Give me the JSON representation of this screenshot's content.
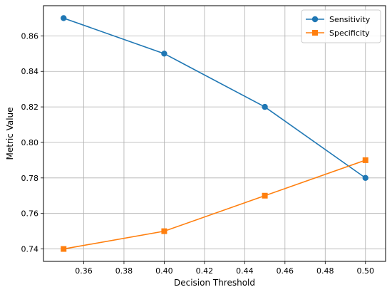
{
  "chart_data": {
    "type": "line",
    "title": "",
    "xlabel": "Decision Threshold",
    "ylabel": "Metric Value",
    "x": [
      0.35,
      0.4,
      0.45,
      0.5
    ],
    "xlim": [
      0.34,
      0.51
    ],
    "ylim": [
      0.733,
      0.877
    ],
    "xticks": [
      0.36,
      0.38,
      0.4,
      0.42,
      0.44,
      0.46,
      0.48,
      0.5
    ],
    "yticks": [
      0.74,
      0.76,
      0.78,
      0.8,
      0.82,
      0.84,
      0.86
    ],
    "xtick_labels": [
      "0.36",
      "0.38",
      "0.40",
      "0.42",
      "0.44",
      "0.46",
      "0.48",
      "0.50"
    ],
    "ytick_labels": [
      "0.74",
      "0.76",
      "0.78",
      "0.80",
      "0.82",
      "0.84",
      "0.86"
    ],
    "grid": true,
    "legend_position": "top-right",
    "series": [
      {
        "name": "Sensitivity",
        "values": [
          0.87,
          0.85,
          0.82,
          0.78
        ],
        "color": "#1f77b4",
        "marker": "circle"
      },
      {
        "name": "Specificity",
        "values": [
          0.74,
          0.75,
          0.77,
          0.79
        ],
        "color": "#ff7f0e",
        "marker": "square"
      }
    ]
  }
}
